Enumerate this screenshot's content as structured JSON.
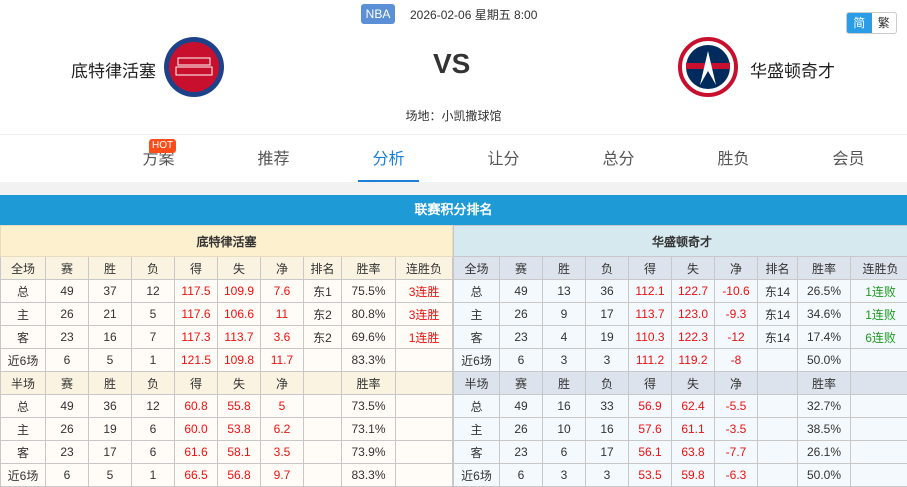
{
  "header": {
    "league": "NBA",
    "datetime": "2026-02-06 星期五 8:00",
    "lang_simplified": "简",
    "lang_traditional": "繁",
    "home": "底特律活塞",
    "away": "华盛顿奇才",
    "vs": "VS",
    "venue": "场地：小凯撒球馆",
    "home_logo": "DETROIT PISTONS",
    "away_logo": "WASHINGTON WIZARDS"
  },
  "nav": {
    "hot": "HOT",
    "tabs": [
      "方案",
      "推荐",
      "分析",
      "让分",
      "总分",
      "胜负",
      "会员"
    ],
    "active": "分析"
  },
  "section_title": "联赛积分排名",
  "colors": {
    "accent": "#1e9ad6",
    "red": "#f01010",
    "green": "#1e9a1e"
  },
  "home_table": {
    "team": "底特律活塞",
    "full_header": [
      "全场",
      "赛",
      "胜",
      "负",
      "得",
      "失",
      "净",
      "排名",
      "胜率",
      "连胜负"
    ],
    "full_rows": [
      [
        "总",
        "49",
        "37",
        "12",
        "117.5",
        "109.9",
        "7.6",
        "东1",
        "75.5%",
        "3连胜"
      ],
      [
        "主",
        "26",
        "21",
        "5",
        "117.6",
        "106.6",
        "11",
        "东2",
        "80.8%",
        "3连胜"
      ],
      [
        "客",
        "23",
        "16",
        "7",
        "117.3",
        "113.7",
        "3.6",
        "东2",
        "69.6%",
        "1连胜"
      ],
      [
        "近6场",
        "6",
        "5",
        "1",
        "121.5",
        "109.8",
        "11.7",
        "",
        "83.3%",
        ""
      ]
    ],
    "half_header": [
      "半场",
      "赛",
      "胜",
      "负",
      "得",
      "失",
      "净",
      "",
      "胜率",
      ""
    ],
    "half_rows": [
      [
        "总",
        "49",
        "36",
        "12",
        "60.8",
        "55.8",
        "5",
        "",
        "73.5%",
        ""
      ],
      [
        "主",
        "26",
        "19",
        "6",
        "60.0",
        "53.8",
        "6.2",
        "",
        "73.1%",
        ""
      ],
      [
        "客",
        "23",
        "17",
        "6",
        "61.6",
        "58.1",
        "3.5",
        "",
        "73.9%",
        ""
      ],
      [
        "近6场",
        "6",
        "5",
        "1",
        "66.5",
        "56.8",
        "9.7",
        "",
        "83.3%",
        ""
      ]
    ]
  },
  "away_table": {
    "team": "华盛顿奇才",
    "full_header": [
      "全场",
      "赛",
      "胜",
      "负",
      "得",
      "失",
      "净",
      "排名",
      "胜率",
      "连胜负"
    ],
    "full_rows": [
      [
        "总",
        "49",
        "13",
        "36",
        "112.1",
        "122.7",
        "-10.6",
        "东14",
        "26.5%",
        "1连败"
      ],
      [
        "主",
        "26",
        "9",
        "17",
        "113.7",
        "123.0",
        "-9.3",
        "东14",
        "34.6%",
        "1连败"
      ],
      [
        "客",
        "23",
        "4",
        "19",
        "110.3",
        "122.3",
        "-12",
        "东14",
        "17.4%",
        "6连败"
      ],
      [
        "近6场",
        "6",
        "3",
        "3",
        "111.2",
        "119.2",
        "-8",
        "",
        "50.0%",
        ""
      ]
    ],
    "half_header": [
      "半场",
      "赛",
      "胜",
      "负",
      "得",
      "失",
      "净",
      "",
      "胜率",
      ""
    ],
    "half_rows": [
      [
        "总",
        "49",
        "16",
        "33",
        "56.9",
        "62.4",
        "-5.5",
        "",
        "32.7%",
        ""
      ],
      [
        "主",
        "26",
        "10",
        "16",
        "57.6",
        "61.1",
        "-3.5",
        "",
        "38.5%",
        ""
      ],
      [
        "客",
        "23",
        "6",
        "17",
        "56.1",
        "63.8",
        "-7.7",
        "",
        "26.1%",
        ""
      ],
      [
        "近6场",
        "6",
        "3",
        "3",
        "53.5",
        "59.8",
        "-6.3",
        "",
        "50.0%",
        ""
      ]
    ]
  }
}
